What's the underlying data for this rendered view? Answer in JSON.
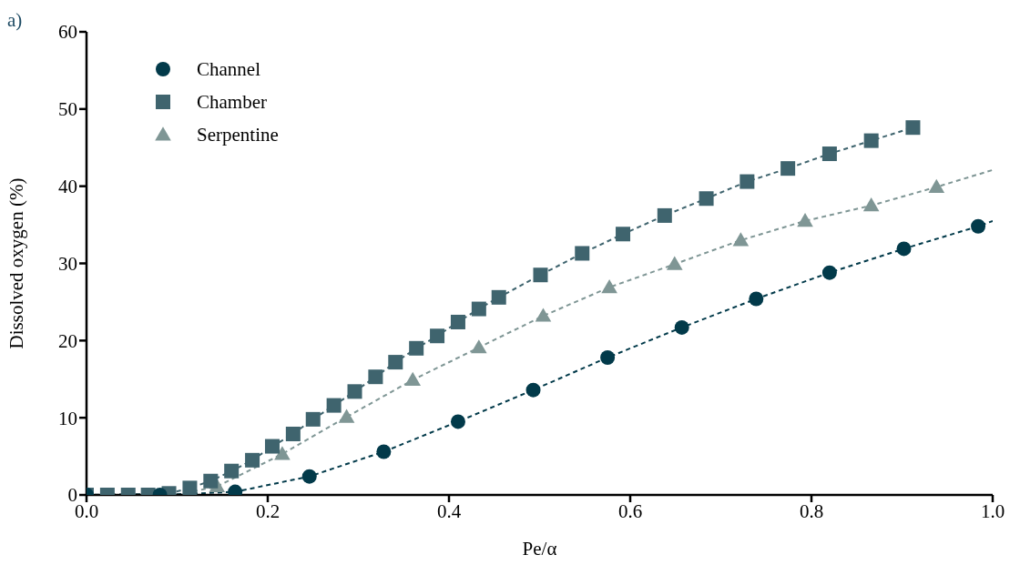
{
  "chart_data": {
    "type": "scatter",
    "xlabel": "Pe/α",
    "ylabel": "Dissolved oxygen (%)",
    "annotations": [
      "a)"
    ],
    "xlim": [
      0,
      1.0
    ],
    "xticks": [
      {
        "value": 0,
        "label": "0.0"
      },
      0.2,
      0.4,
      0.6,
      0.8,
      {
        "value": 1,
        "label": "1.0"
      }
    ],
    "ylim": [
      0,
      60
    ],
    "yticks": [
      0,
      10,
      20,
      30,
      40,
      50,
      60
    ],
    "grid": false,
    "legend": "top left",
    "line_style": "dashed",
    "series": [
      {
        "name": "Channel",
        "marker": "circle",
        "color": "#023a4a",
        "x": [
          0,
          0.081,
          0.164,
          0.246,
          0.328,
          0.41,
          0.493,
          0.575,
          0.657,
          0.739,
          0.82,
          0.902,
          0.984
        ],
        "values": [
          0,
          0,
          0.4,
          2.4,
          5.6,
          9.5,
          13.6,
          17.8,
          21.7,
          25.4,
          28.8,
          31.9,
          34.8
        ]
      },
      {
        "name": "Chamber",
        "marker": "square",
        "color": "#3f646e",
        "x": [
          0,
          0.023,
          0.046,
          0.068,
          0.091,
          0.114,
          0.137,
          0.16,
          0.183,
          0.205,
          0.228,
          0.25,
          0.273,
          0.296,
          0.319,
          0.341,
          0.364,
          0.387,
          0.41,
          0.433,
          0.455,
          0.501,
          0.547,
          0.592,
          0.638,
          0.684,
          0.729,
          0.774,
          0.82,
          0.866,
          0.912
        ],
        "values": [
          0,
          0,
          0,
          0,
          0.2,
          0.9,
          1.8,
          3.1,
          4.5,
          6.3,
          7.9,
          9.8,
          11.6,
          13.4,
          15.3,
          17.2,
          19,
          20.6,
          22.4,
          24.1,
          25.6,
          28.5,
          31.3,
          33.8,
          36.2,
          38.4,
          40.6,
          42.3,
          44.2,
          45.9,
          47.6
        ]
      },
      {
        "name": "Serpentine",
        "marker": "triangle",
        "color": "#7f9695",
        "x": [
          0.144,
          0.216,
          0.287,
          0.36,
          0.433,
          0.504,
          0.577,
          0.649,
          0.722,
          0.793,
          0.866,
          0.938
        ],
        "values": [
          1.1,
          5.3,
          10.1,
          14.9,
          19.1,
          23.2,
          26.9,
          29.9,
          33,
          35.5,
          37.5,
          39.9
        ]
      },
      {
        "type": "line",
        "marker": "none",
        "color": "#023a4a",
        "x": [
          0,
          0.081,
          0.164,
          0.246,
          0.328,
          0.41,
          0.493,
          0.575,
          0.657,
          0.739,
          0.82,
          0.902,
          0.984,
          1.0
        ],
        "values": [
          0,
          0,
          0.4,
          2.4,
          5.6,
          9.5,
          13.6,
          17.8,
          21.7,
          25.4,
          28.8,
          31.9,
          34.8,
          35.5
        ]
      },
      {
        "type": "line",
        "marker": "none",
        "color": "#3f646e",
        "x": [
          0,
          0.091,
          0.114,
          0.137,
          0.16,
          0.183,
          0.205,
          0.228,
          0.25,
          0.273,
          0.296,
          0.319,
          0.341,
          0.364,
          0.387,
          0.41,
          0.433,
          0.455,
          0.501,
          0.547,
          0.592,
          0.638,
          0.684,
          0.729,
          0.774,
          0.82,
          0.866,
          0.912
        ],
        "values": [
          0,
          0.2,
          0.9,
          1.8,
          3.1,
          4.5,
          6.3,
          7.9,
          9.8,
          11.6,
          13.4,
          15.3,
          17.2,
          19,
          20.6,
          22.4,
          24.1,
          25.6,
          28.5,
          31.3,
          33.8,
          36.2,
          38.4,
          40.6,
          42.3,
          44.2,
          45.9,
          47.6
        ]
      },
      {
        "type": "line",
        "marker": "none",
        "color": "#7f9695",
        "x": [
          0.1,
          0.144,
          0.216,
          0.287,
          0.36,
          0.433,
          0.504,
          0.577,
          0.649,
          0.722,
          0.793,
          0.866,
          0.938,
          1.0
        ],
        "values": [
          0,
          1.1,
          5.3,
          10.1,
          14.9,
          19.1,
          23.2,
          26.9,
          29.9,
          33,
          35.5,
          37.5,
          39.9,
          42.1
        ]
      }
    ]
  }
}
